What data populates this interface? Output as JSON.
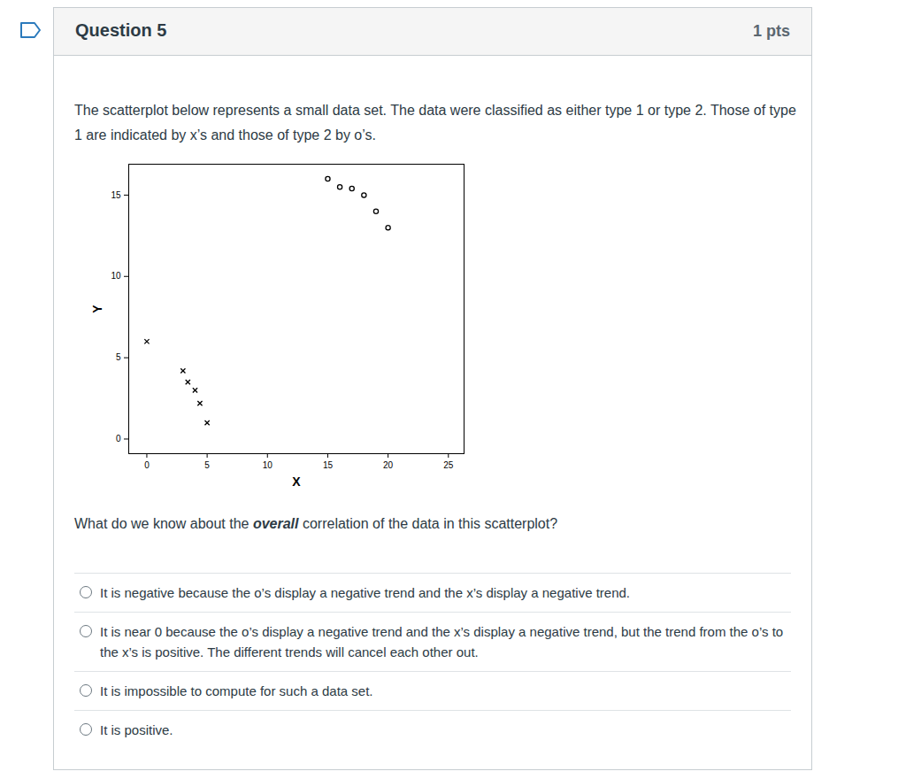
{
  "header": {
    "title": "Question 5",
    "points": "1 pts"
  },
  "intro": "The scatterplot below represents a small data set. The data were classified as either type 1 or type 2. Those of type 1 are indicated by x’s and those of type 2 by o’s.",
  "chart_data": {
    "type": "scatter",
    "x_label": "X",
    "y_label": "Y",
    "xlim": [
      -1.5,
      26.3
    ],
    "ylim": [
      -0.9,
      16.9
    ],
    "xticks": [
      0,
      5,
      10,
      15,
      20,
      25
    ],
    "yticks": [
      0,
      5,
      10,
      15
    ],
    "series": [
      {
        "marker": "x",
        "color": "#000000",
        "x": [
          0,
          3,
          3.4,
          4,
          4.4,
          5
        ],
        "y": [
          6,
          4.2,
          3.5,
          3,
          2.2,
          1
        ]
      },
      {
        "marker": "o",
        "color": "#000000",
        "x": [
          15,
          16,
          17,
          18,
          19,
          20
        ],
        "y": [
          16,
          15.5,
          15.4,
          15,
          14,
          13
        ]
      }
    ]
  },
  "question": {
    "prompt": [
      {
        "text": "What do we know about the "
      },
      {
        "text": "overall",
        "emphasis": true
      },
      {
        "text": " correlation of the data in this scatterplot?"
      }
    ],
    "options": [
      "It is negative because the o’s display a negative trend and the x’s display a negative trend.",
      "It is near 0 because the o’s display a negative trend and the x’s display a negative trend, but the trend from the o’s to the x’s is positive. The different trends will cancel each other out.",
      "It is impossible to compute for such a data set.",
      "It is positive."
    ]
  }
}
